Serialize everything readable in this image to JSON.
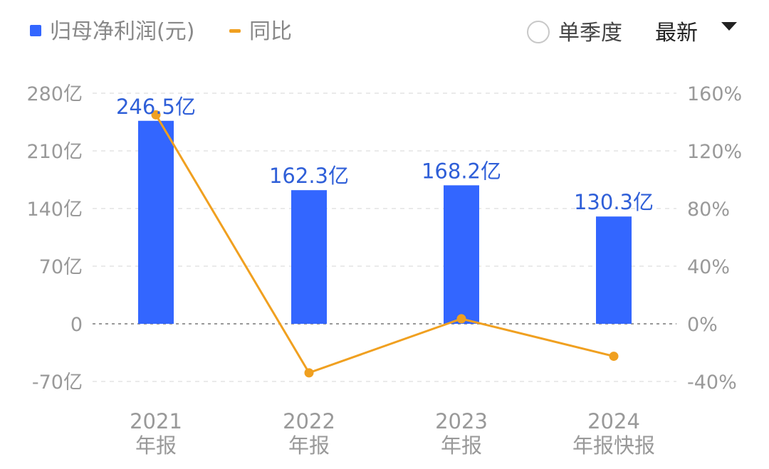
{
  "legend": {
    "bar_label": "归母净利润(元)",
    "line_label": "同比"
  },
  "controls": {
    "single_quarter_label": "单季度",
    "dropdown_label": "最新"
  },
  "colors": {
    "bar": "#3366ff",
    "line": "#f0a020",
    "bar_label": "#2f5fd8",
    "axis_text": "#999999",
    "grid": "#e3e3e3",
    "zero_line": "#999999"
  },
  "chart_data": {
    "type": "bar",
    "categories": [
      {
        "year": "2021",
        "type": "年报"
      },
      {
        "year": "2022",
        "type": "年报"
      },
      {
        "year": "2023",
        "type": "年报"
      },
      {
        "year": "2024",
        "type": "年报快报"
      }
    ],
    "series": [
      {
        "name": "归母净利润(元)",
        "kind": "bar",
        "axis": "left",
        "values": [
          246.5,
          162.3,
          168.2,
          130.3
        ],
        "labels": [
          "246.5亿",
          "162.3亿",
          "168.2亿",
          "130.3亿"
        ]
      },
      {
        "name": "同比",
        "kind": "line",
        "axis": "right",
        "values": [
          145,
          -34,
          3.5,
          -22.5
        ]
      }
    ],
    "left_axis": {
      "ticks": [
        280,
        210,
        140,
        70,
        0,
        -70
      ],
      "tick_labels": [
        "280亿",
        "210亿",
        "140亿",
        "70亿",
        "0",
        "-70亿"
      ],
      "ylim": [
        -70,
        280
      ]
    },
    "right_axis": {
      "ticks": [
        160,
        120,
        80,
        40,
        0,
        -40
      ],
      "tick_labels": [
        "160%",
        "120%",
        "80%",
        "40%",
        "0%",
        "-40%"
      ],
      "ylim": [
        -40,
        160
      ]
    },
    "grid": true,
    "legend_position": "top-left"
  }
}
